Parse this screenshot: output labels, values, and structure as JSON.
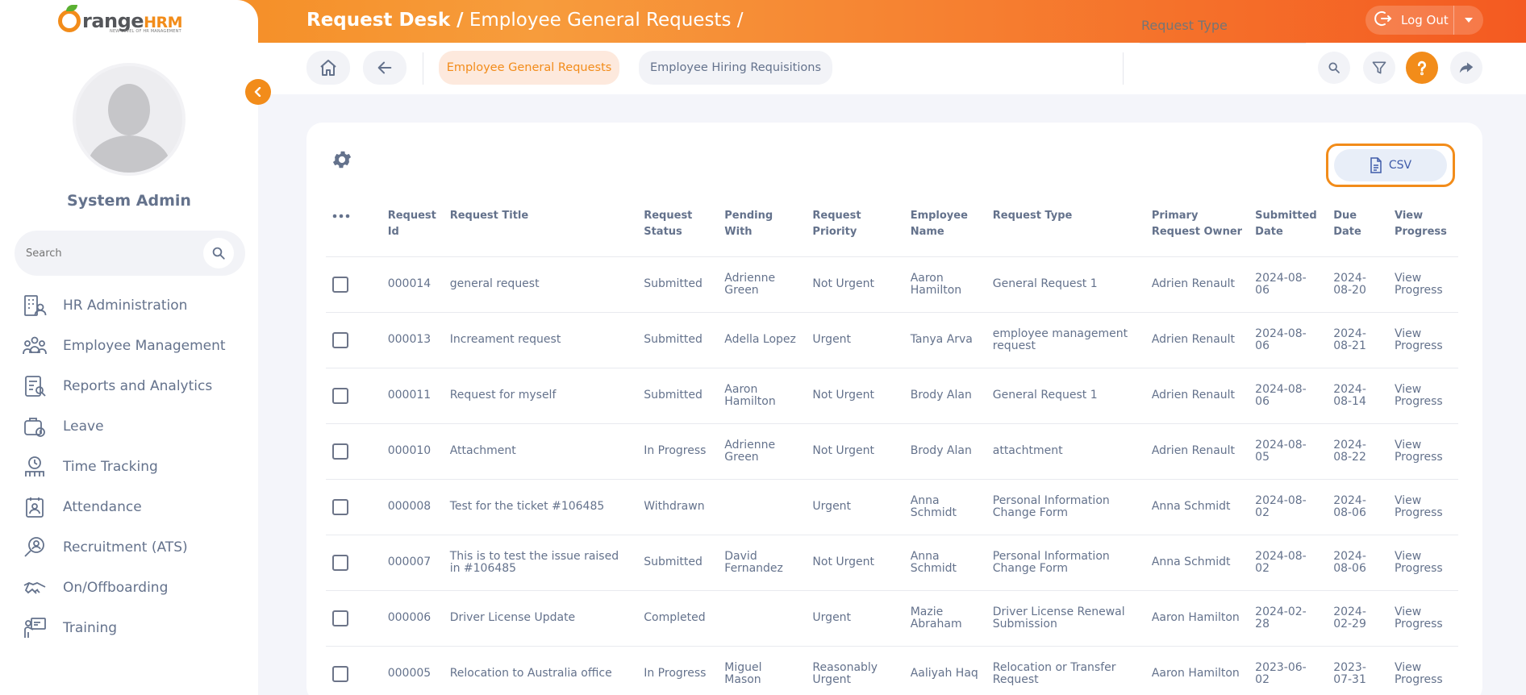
{
  "brand": {
    "logo_main": "range",
    "logo_hrm": "HRM",
    "logo_tagline": "NEW LEVEL OF HR MANAGEMENT",
    "accent_color": "#f28c1a"
  },
  "header": {
    "breadcrumb_root": "Request Desk /",
    "breadcrumb_page": "Employee General Requests /",
    "logout_label": "Log Out"
  },
  "sidebar": {
    "user_name": "System Admin",
    "search_placeholder": "Search",
    "items": [
      {
        "label": "HR Administration",
        "icon": "hr-administration-icon"
      },
      {
        "label": "Employee Management",
        "icon": "employee-management-icon"
      },
      {
        "label": "Reports and Analytics",
        "icon": "reports-icon"
      },
      {
        "label": "Leave",
        "icon": "leave-icon"
      },
      {
        "label": "Time Tracking",
        "icon": "time-tracking-icon"
      },
      {
        "label": "Attendance",
        "icon": "attendance-icon"
      },
      {
        "label": "Recruitment (ATS)",
        "icon": "recruitment-icon"
      },
      {
        "label": "On/Offboarding",
        "icon": "onboarding-icon"
      },
      {
        "label": "Training",
        "icon": "training-icon"
      }
    ]
  },
  "toolbar": {
    "tabs": [
      {
        "label": "Employee General Requests",
        "active": true
      },
      {
        "label": "Employee Hiring Requisitions",
        "active": false
      }
    ],
    "request_type_placeholder": "Request Type"
  },
  "table": {
    "csv_label": "CSV",
    "columns": [
      "Request Id",
      "Request Title",
      "Request Status",
      "Pending With",
      "Request Priority",
      "Employee Name",
      "Request Type",
      "Primary Request Owner",
      "Submitted Date",
      "Due Date",
      "View Progress"
    ],
    "rows": [
      {
        "id": "000014",
        "title": "general request",
        "status": "Submitted",
        "pending": "Adrienne Green",
        "priority": "Not Urgent",
        "employee": "Aaron Hamilton",
        "type": "General Request 1",
        "owner": "Adrien Renault",
        "submitted": "2024-08-06",
        "due": "2024-08-20",
        "view": "View Progress"
      },
      {
        "id": "000013",
        "title": "Increament request",
        "status": "Submitted",
        "pending": "Adella Lopez",
        "priority": "Urgent",
        "employee": "Tanya Arva",
        "type": "employee management request",
        "owner": "Adrien Renault",
        "submitted": "2024-08-06",
        "due": "2024-08-21",
        "view": "View Progress"
      },
      {
        "id": "000011",
        "title": "Request for myself",
        "status": "Submitted",
        "pending": "Aaron Hamilton",
        "priority": "Not Urgent",
        "employee": "Brody Alan",
        "type": "General Request 1",
        "owner": "Adrien Renault",
        "submitted": "2024-08-06",
        "due": "2024-08-14",
        "view": "View Progress"
      },
      {
        "id": "000010",
        "title": "Attachment",
        "status": "In Progress",
        "pending": "Adrienne Green",
        "priority": "Not Urgent",
        "employee": "Brody Alan",
        "type": "attachtment",
        "owner": "Adrien Renault",
        "submitted": "2024-08-05",
        "due": "2024-08-22",
        "view": "View Progress"
      },
      {
        "id": "000008",
        "title": "Test for the ticket #106485",
        "status": "Withdrawn",
        "pending": "",
        "priority": "Urgent",
        "employee": "Anna Schmidt",
        "type": "Personal Information Change Form",
        "owner": "Anna Schmidt",
        "submitted": "2024-08-02",
        "due": "2024-08-06",
        "view": "View Progress"
      },
      {
        "id": "000007",
        "title": "This is to test the issue raised in #106485",
        "status": "Submitted",
        "pending": "David Fernandez",
        "priority": "Not Urgent",
        "employee": "Anna Schmidt",
        "type": "Personal Information Change Form",
        "owner": "Anna Schmidt",
        "submitted": "2024-08-02",
        "due": "2024-08-06",
        "view": "View Progress"
      },
      {
        "id": "000006",
        "title": "Driver License Update",
        "status": "Completed",
        "pending": "",
        "priority": "Urgent",
        "employee": "Mazie Abraham",
        "type": "Driver License Renewal Submission",
        "owner": "Aaron Hamilton",
        "submitted": "2024-02-28",
        "due": "2024-02-29",
        "view": "View Progress"
      },
      {
        "id": "000005",
        "title": "Relocation to Australia office",
        "status": "In Progress",
        "pending": "Miguel Mason",
        "priority": "Reasonably Urgent",
        "employee": "Aaliyah Haq",
        "type": "Relocation or Transfer Request",
        "owner": "Aaron Hamilton",
        "submitted": "2023-06-02",
        "due": "2023-07-31",
        "view": "View Progress"
      }
    ]
  }
}
